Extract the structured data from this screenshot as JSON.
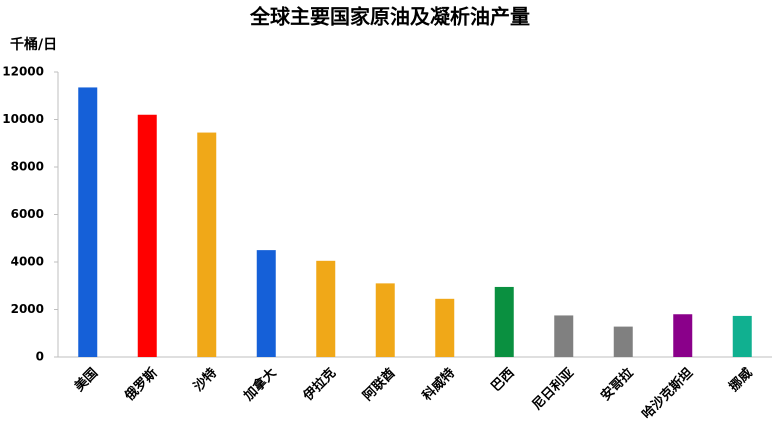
{
  "chart_data": {
    "type": "bar",
    "title": "全球主要国家原油及凝析油产量",
    "y_label": "千桶/日",
    "categories": [
      "美国",
      "俄罗斯",
      "沙特",
      "加拿大",
      "伊拉克",
      "阿联酋",
      "科威特",
      "巴西",
      "尼日利亚",
      "安哥拉",
      "哈沙克斯坦",
      "挪威"
    ],
    "values": [
      11350,
      10200,
      9450,
      4500,
      4050,
      3100,
      2450,
      2950,
      1750,
      1280,
      1800,
      1730
    ],
    "colors": [
      "#1560d8",
      "#ff0000",
      "#f0a818",
      "#1560d8",
      "#f0a818",
      "#f0a818",
      "#f0a818",
      "#0a9040",
      "#808080",
      "#808080",
      "#8a008a",
      "#10b090"
    ],
    "ylim": [
      0,
      12000
    ],
    "yticks": [
      0,
      2000,
      4000,
      6000,
      8000,
      10000,
      12000
    ],
    "grid": false
  }
}
